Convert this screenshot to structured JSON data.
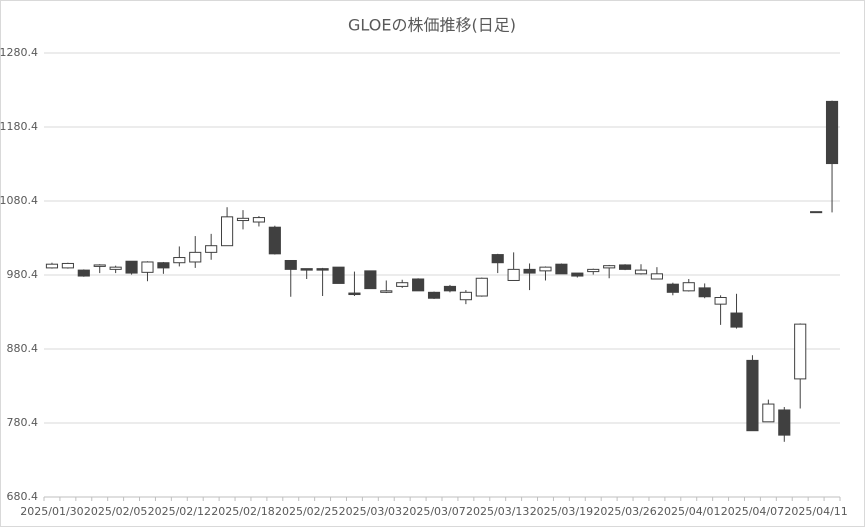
{
  "chart_data": {
    "type": "candlestick",
    "title": "GLOEの株価推移(日足)",
    "categories": [
      "2025/01/30",
      null,
      null,
      null,
      "2025/02/05",
      null,
      null,
      null,
      "2025/02/12",
      null,
      null,
      null,
      "2025/02/18",
      null,
      null,
      null,
      "2025/02/25",
      null,
      null,
      null,
      "2025/03/03",
      null,
      null,
      null,
      "2025/03/07",
      null,
      null,
      null,
      "2025/03/13",
      null,
      null,
      null,
      "2025/03/19",
      null,
      null,
      null,
      "2025/03/26",
      null,
      null,
      null,
      "2025/04/01",
      null,
      null,
      null,
      "2025/04/07",
      null,
      null,
      null,
      "2025/04/11",
      null
    ],
    "open": [
      990,
      990,
      987,
      992,
      988,
      999,
      984,
      997,
      997,
      998,
      1011,
      1020,
      1054,
      1052,
      1045,
      1000,
      989,
      989,
      991,
      956,
      986,
      957,
      965,
      975,
      957,
      965,
      947,
      952,
      1008,
      973,
      988,
      986,
      995,
      983,
      985,
      990,
      994,
      982,
      975,
      968,
      959,
      963,
      941,
      929,
      865,
      782,
      798,
      840,
      1066,
      1215
    ],
    "high": [
      997,
      997,
      988,
      995,
      993,
      999,
      999,
      998,
      1019,
      1033,
      1036,
      1072,
      1068,
      1060,
      1047,
      1000,
      989,
      990,
      991,
      985,
      986,
      973,
      974,
      976,
      958,
      967,
      960,
      977,
      1009,
      1011,
      996,
      992,
      996,
      983,
      989,
      994,
      995,
      995,
      991,
      970,
      975,
      969,
      953,
      955,
      872,
      812,
      802,
      915,
      1066,
      1216
    ],
    "low": [
      989,
      989,
      978,
      983,
      983,
      981,
      972,
      982,
      992,
      990,
      1001,
      1020,
      1042,
      1046,
      1008,
      951,
      975,
      952,
      969,
      952,
      962,
      956,
      963,
      959,
      948,
      957,
      941,
      951,
      983,
      973,
      960,
      973,
      982,
      977,
      981,
      976,
      987,
      981,
      975,
      953,
      958,
      949,
      913,
      908,
      770,
      782,
      755,
      800,
      1066,
      1065
    ],
    "close": [
      995,
      996,
      979,
      994,
      991,
      983,
      998,
      990,
      1004,
      1011,
      1020,
      1059,
      1057,
      1058,
      1009,
      988,
      987,
      987,
      969,
      954,
      962,
      959,
      970,
      959,
      949,
      959,
      957,
      976,
      997,
      988,
      983,
      991,
      982,
      979,
      988,
      993,
      988,
      987,
      982,
      957,
      970,
      951,
      950,
      910,
      770,
      806,
      764,
      914,
      1066,
      1131
    ],
    "up_color": "#ffffff",
    "down_color": "#404040",
    "edge_color": "#404040",
    "ylim": [
      680.4,
      1280.4
    ],
    "yticks": [
      680.4,
      780.4,
      880.4,
      980.4,
      1080.4,
      1180.4,
      1280.4
    ],
    "grid": true
  }
}
